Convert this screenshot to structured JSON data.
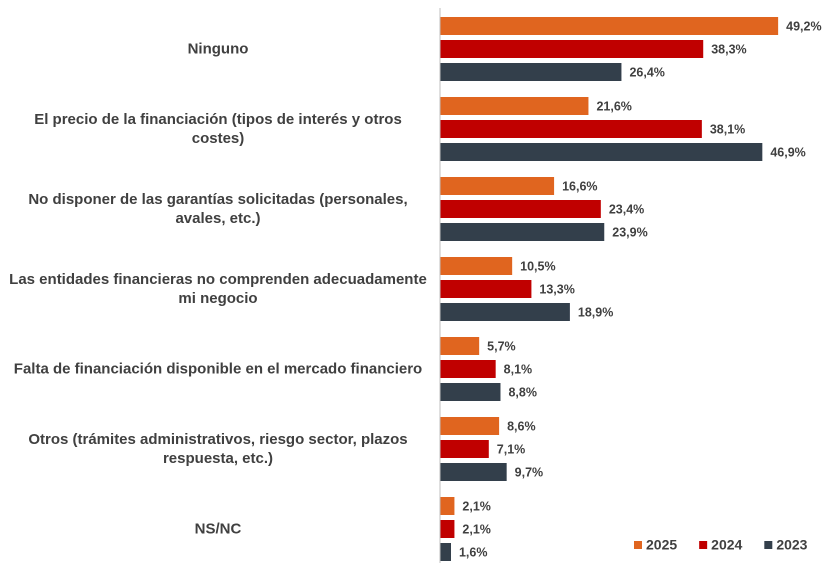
{
  "chart_data": {
    "type": "hbar",
    "categories": [
      "Ninguno",
      "El precio de la financiación (tipos de interés y otros costes)",
      "No disponer de las garantías solicitadas (personales, avales, etc.)",
      "Las entidades financieras no comprenden adecuadamente mi negocio",
      "Falta de financiación disponible en el mercado financiero",
      "Otros (trámites administrativos, riesgo sector, plazos respuesta, etc.)",
      "NS/NC"
    ],
    "series": [
      {
        "name": "2025",
        "color": "#e0651f",
        "values": [
          49.2,
          21.6,
          16.6,
          10.5,
          5.7,
          8.6,
          2.1
        ],
        "value_labels": [
          "49,2%",
          "21,6%",
          "16,6%",
          "10,5%",
          "5,7%",
          "8,6%",
          "2,1%"
        ]
      },
      {
        "name": "2024",
        "color": "#c00000",
        "values": [
          38.3,
          38.1,
          23.4,
          13.3,
          8.1,
          7.1,
          2.1
        ],
        "value_labels": [
          "38,3%",
          "38,1%",
          "23,4%",
          "13,3%",
          "8,1%",
          "7,1%",
          "2,1%"
        ]
      },
      {
        "name": "2023",
        "color": "#333f4b",
        "values": [
          26.4,
          46.9,
          23.9,
          18.9,
          8.8,
          9.7,
          1.6
        ],
        "value_labels": [
          "26,4%",
          "46,9%",
          "23,9%",
          "18,9%",
          "8,8%",
          "9,7%",
          "1,6%"
        ]
      }
    ],
    "xlim": [
      0,
      55
    ],
    "legend": "lower right"
  }
}
